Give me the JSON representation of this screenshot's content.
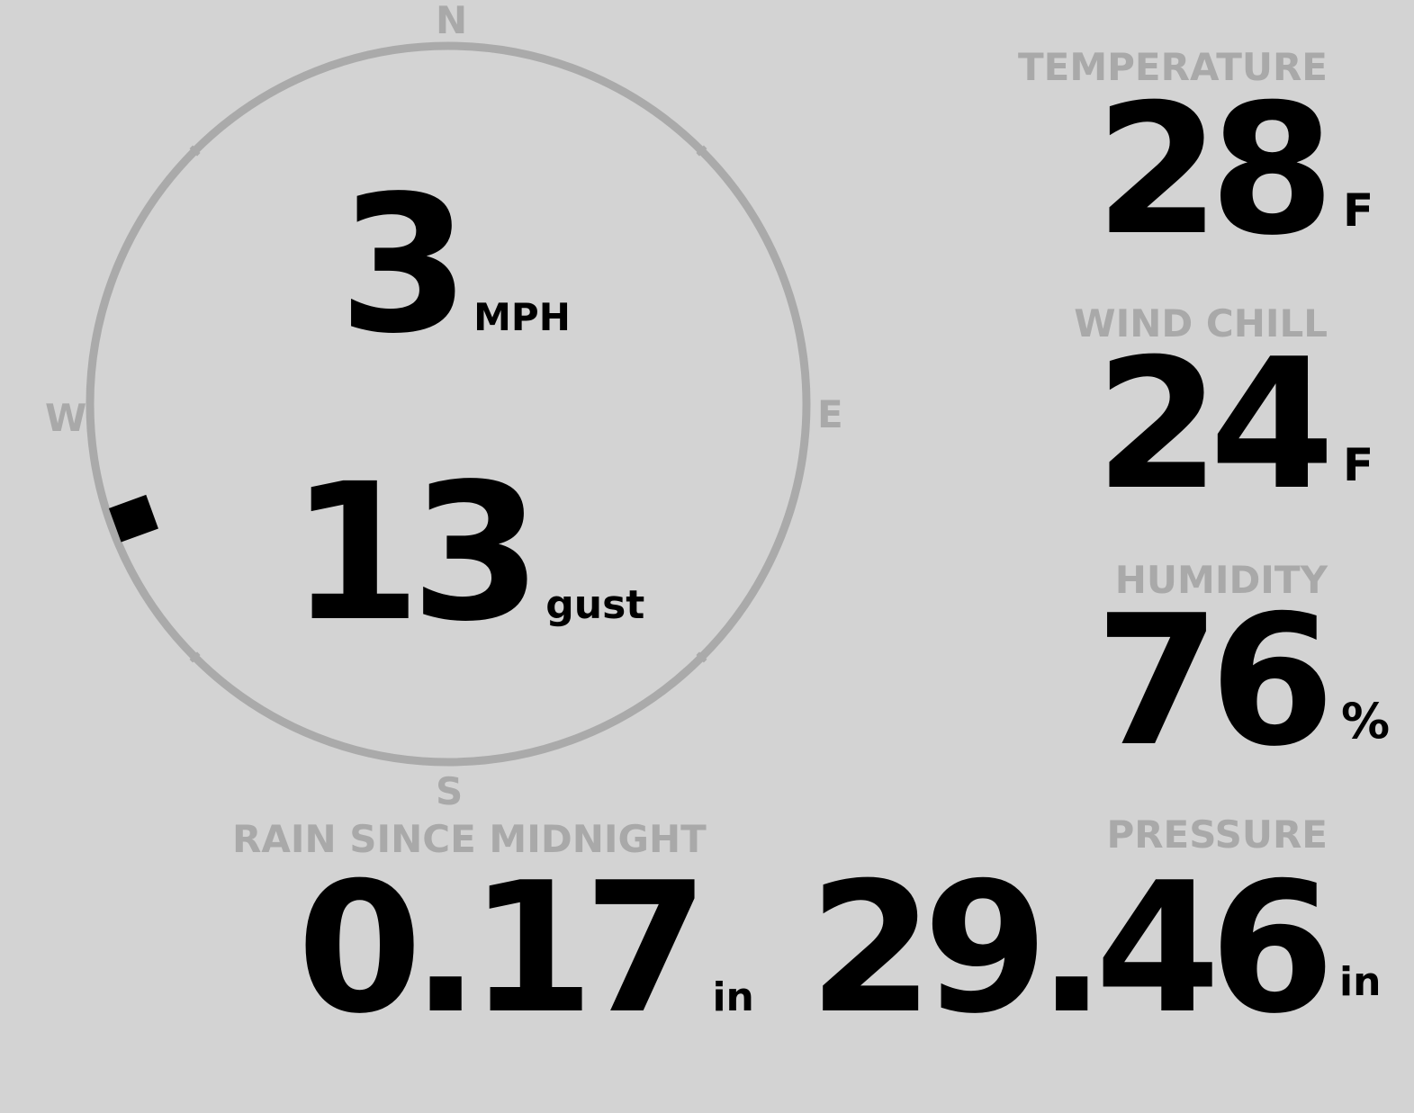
{
  "compass": {
    "north": "N",
    "south": "S",
    "east": "E",
    "west": "W",
    "direction_degrees": 250,
    "ring_color": "#aaaaaa",
    "marker_color": "#000000"
  },
  "wind": {
    "speed": "3",
    "speed_unit": "MPH",
    "gust": "13",
    "gust_unit": "gust"
  },
  "temperature": {
    "label": "TEMPERATURE",
    "value": "28",
    "unit": "F"
  },
  "wind_chill": {
    "label": "WIND CHILL",
    "value": "24",
    "unit": "F"
  },
  "humidity": {
    "label": "HUMIDITY",
    "value": "76",
    "unit": "%"
  },
  "rain": {
    "label": "RAIN SINCE MIDNIGHT",
    "value": "0.17",
    "unit": "in"
  },
  "pressure": {
    "label": "PRESSURE",
    "value": "29.46",
    "unit": "in"
  },
  "colors": {
    "background": "#d3d3d3",
    "label": "#a9a9a9",
    "value": "#000000"
  }
}
